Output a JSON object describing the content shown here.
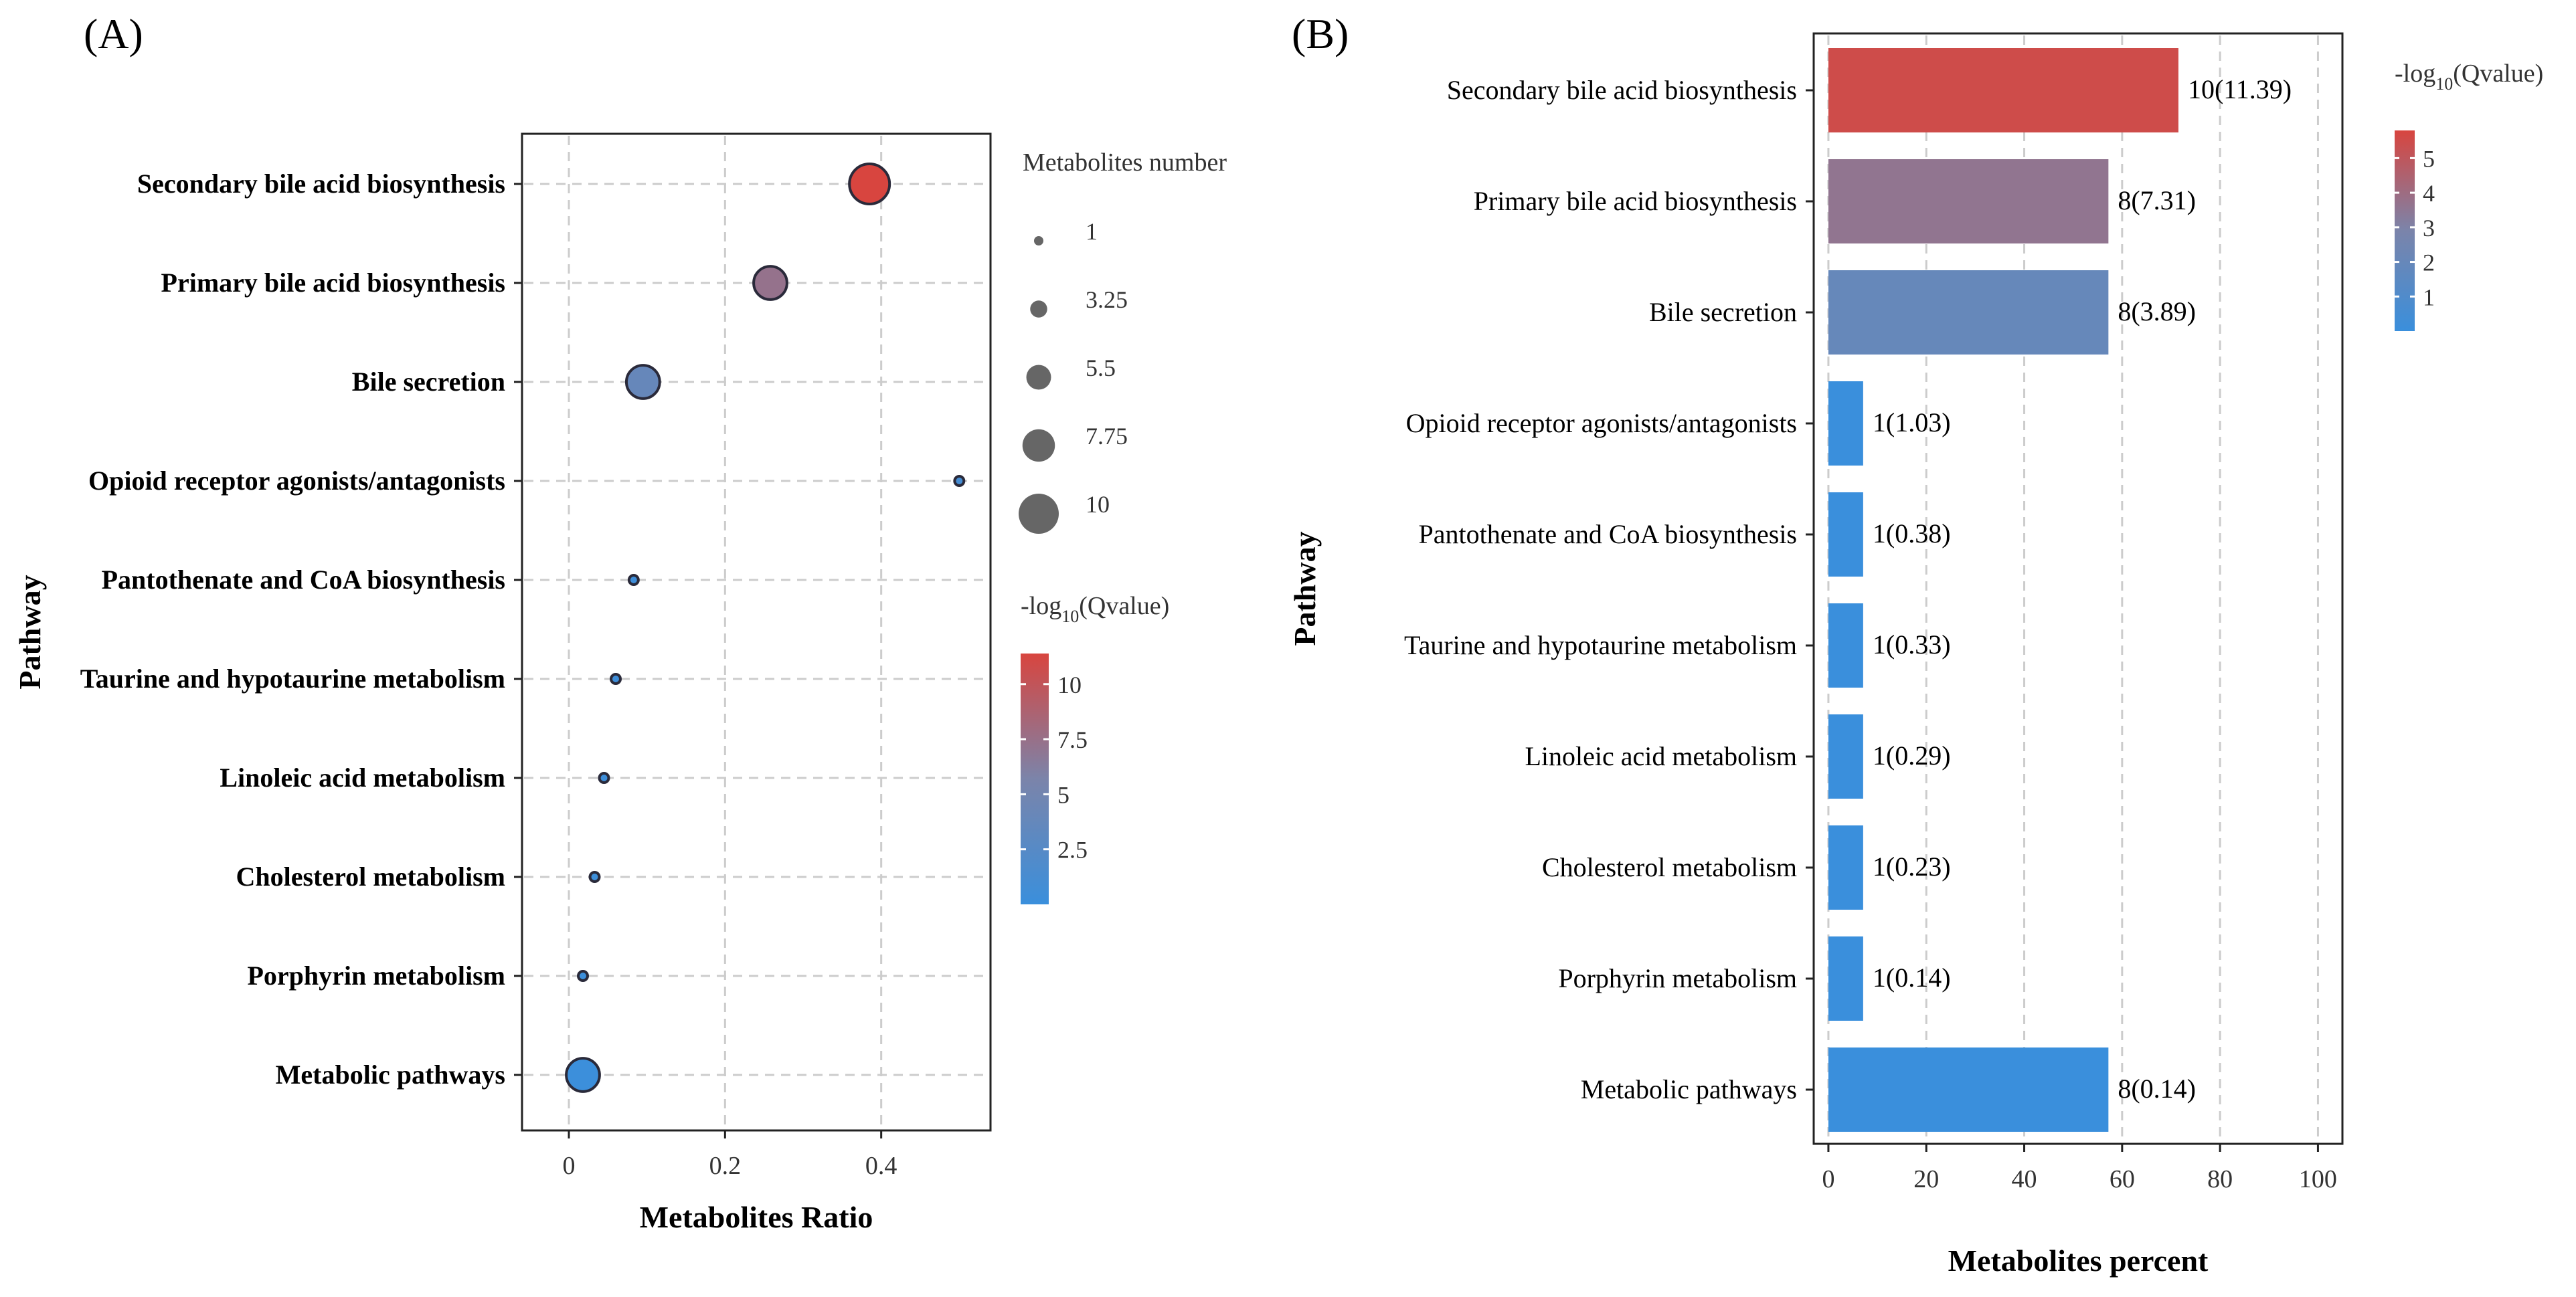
{
  "panel_labels": [
    "(A)",
    "(B)"
  ],
  "chart_data": [
    {
      "type": "scatter",
      "panel": "(A)",
      "title": "",
      "xlabel": "Metabolites Ratio",
      "ylabel": "Pathway",
      "xlim": [
        -0.06,
        0.54
      ],
      "xticks": [
        0,
        0.2,
        0.4
      ],
      "xtick_labels": [
        "0",
        "0.2",
        "0.4"
      ],
      "grid": true,
      "categories": [
        "Secondary bile acid biosynthesis",
        "Primary bile acid biosynthesis",
        "Bile secretion",
        "Opioid receptor agonists/antagonists",
        "Pantothenate and CoA biosynthesis",
        "Taurine and hypotaurine metabolism",
        "Linoleic acid metabolism",
        "Cholesterol metabolism",
        "Porphyrin metabolism",
        "Metabolic pathways"
      ],
      "x": [
        0.385,
        0.258,
        0.095,
        0.5,
        0.083,
        0.06,
        0.045,
        0.033,
        0.018,
        0.018
      ],
      "size": [
        10,
        8,
        8,
        1,
        1,
        1,
        1,
        1,
        1,
        8
      ],
      "color_value": [
        11.39,
        7.31,
        3.89,
        1.03,
        0.38,
        0.33,
        0.29,
        0.23,
        0.14,
        0.14
      ],
      "size_legend": {
        "title": "Metabolites number",
        "labels": [
          "1",
          "3.25",
          "5.5",
          "7.75",
          "10"
        ],
        "values": [
          1,
          3.25,
          5.5,
          7.75,
          10
        ]
      },
      "color_legend": {
        "title_prefix": "-log",
        "title_sub": "10",
        "title_suffix": "(Qvalue)",
        "labels": [
          "10",
          "7.5",
          "5",
          "2.5"
        ],
        "values": [
          10,
          7.5,
          5,
          2.5
        ],
        "range": [
          0,
          11.39
        ]
      }
    },
    {
      "type": "bar",
      "orientation": "horizontal",
      "panel": "(B)",
      "title": "",
      "xlabel": "Metabolites percent",
      "ylabel": "Pathway",
      "xlim": [
        -3,
        105
      ],
      "xticks": [
        0,
        20,
        40,
        60,
        80,
        100
      ],
      "xtick_labels": [
        "0",
        "20",
        "40",
        "60",
        "80",
        "100"
      ],
      "grid": true,
      "categories": [
        "Secondary bile acid biosynthesis",
        "Primary bile acid biosynthesis",
        "Bile secretion",
        "Opioid receptor agonists/antagonists",
        "Pantothenate and CoA biosynthesis",
        "Taurine and hypotaurine metabolism",
        "Linoleic acid metabolism",
        "Cholesterol metabolism",
        "Porphyrin metabolism",
        "Metabolic pathways"
      ],
      "values": [
        71.5,
        57.2,
        57.2,
        7.1,
        7.1,
        7.1,
        7.1,
        7.1,
        7.1,
        57.2
      ],
      "bar_labels": [
        "10(11.39)",
        "8(7.31)",
        "8(3.89)",
        "1(1.03)",
        "1(0.38)",
        "1(0.33)",
        "1(0.29)",
        "1(0.23)",
        "1(0.14)",
        "8(0.14)"
      ],
      "color_value": [
        5.5,
        3.6,
        1.95,
        0,
        0,
        0,
        0,
        0,
        0,
        0
      ],
      "color_legend": {
        "title_prefix": "-log",
        "title_sub": "10",
        "title_suffix": "(Qvalue)",
        "labels": [
          "5",
          "4",
          "3",
          "2",
          "1"
        ],
        "values": [
          5,
          4,
          3,
          2,
          1
        ],
        "range": [
          0,
          5.8
        ]
      }
    }
  ],
  "colors": {
    "low": "#3a8fdc",
    "mid": "#7b84aa",
    "high": "#d8453f",
    "grid": "#cccccc",
    "frame": "#222222"
  }
}
